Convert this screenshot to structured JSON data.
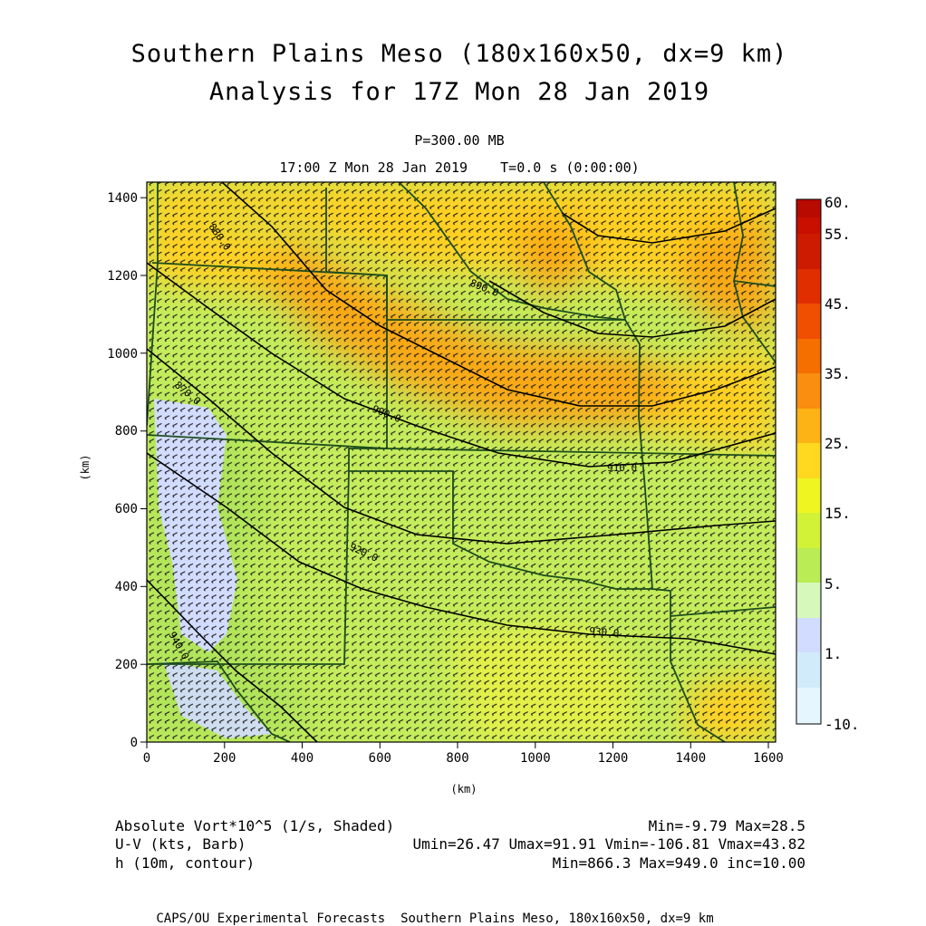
{
  "title": {
    "line1": "Southern Plains Meso (180x160x50, dx=9 km)",
    "line2": "Analysis for 17Z Mon 28 Jan 2019"
  },
  "subtitle": {
    "pressure": "P=300.00 MB",
    "time": "17:00 Z Mon 28 Jan 2019    T=0.0 s (0:00:00)"
  },
  "axes": {
    "x_unit": "(km)",
    "y_unit": "(km)",
    "x_ticks": [
      "0",
      "200",
      "400",
      "600",
      "800",
      "1000",
      "1200",
      "1400",
      "1600"
    ],
    "y_ticks": [
      "0",
      "200",
      "400",
      "600",
      "800",
      "1000",
      "1200",
      "1400"
    ],
    "x_range": [
      0,
      1620
    ],
    "y_range": [
      0,
      1440
    ]
  },
  "colorbar": {
    "labels": [
      "60.",
      "55.",
      "45.",
      "35.",
      "25.",
      "15.",
      "5.",
      "1.",
      "-10."
    ],
    "colors": [
      "#b80a00",
      "#cc1b00",
      "#e02e00",
      "#f04e00",
      "#f56f00",
      "#f98e10",
      "#fdb315",
      "#ffd81f",
      "#eef520",
      "#d2f238",
      "#b9ec55",
      "#d6f9bb",
      "#d2dcff",
      "#d2ebfb",
      "#e6f6ff"
    ]
  },
  "contours": {
    "labels": [
      "900.0",
      "910.0",
      "920.0",
      "930.0",
      "940.0",
      "890.0",
      "880.0",
      "870.0"
    ]
  },
  "legend": {
    "field1": "Absolute Vort*10^5 (1/s, Shaded)",
    "field1_stats": "Min=-9.79 Max=28.5",
    "field2": "U-V (kts, Barb)",
    "field2_stats": "Umin=26.47 Umax=91.91 Vmin=-106.81 Vmax=43.82",
    "field3": "h (10m, contour)",
    "field3_stats": "Min=866.3 Max=949.0 inc=10.00"
  },
  "credit": "CAPS/OU Experimental Forecasts  Southern Plains Meso, 180x160x50, dx=9 km"
}
